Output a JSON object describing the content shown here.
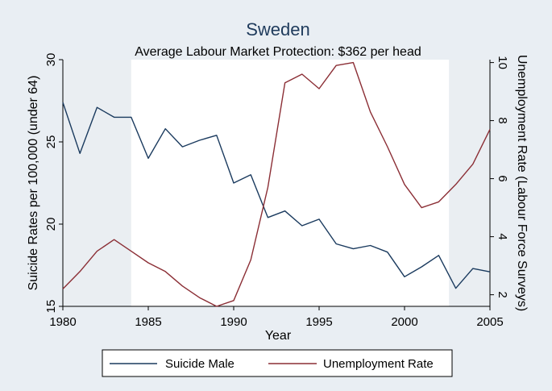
{
  "chart_data": {
    "type": "line",
    "title": "Sweden",
    "subtitle": "Average Labour Market Protection: $362 per head",
    "xlabel": "Year",
    "ylabel_left": "Suicide Rates per 100,000 (under 64)",
    "ylabel_right": "Unemployment Rate (Labour Force Surveys)",
    "xlim": [
      1980,
      2005
    ],
    "ylim_left": [
      15,
      30
    ],
    "ylim_right": [
      1.6,
      10.1
    ],
    "x_ticks": [
      1980,
      1985,
      1990,
      1995,
      2000,
      2005
    ],
    "y_left_ticks": [
      15,
      20,
      25,
      30
    ],
    "y_right_ticks": [
      2,
      4,
      6,
      8,
      10
    ],
    "shaded_ranges": [
      [
        1980,
        1984
      ],
      [
        2002.6,
        2005.5
      ]
    ],
    "legend_position": "bottom",
    "colors": {
      "suicide": "#1a3a5e",
      "unemployment": "#8b2e35",
      "plot_bg": "#ffffff",
      "shade": "#eaeef2",
      "outer_bg": "#e9eef3",
      "title": "#1f3b5c"
    },
    "x": [
      1980,
      1981,
      1982,
      1983,
      1984,
      1985,
      1986,
      1987,
      1988,
      1989,
      1990,
      1991,
      1992,
      1993,
      1994,
      1995,
      1996,
      1997,
      1998,
      1999,
      2000,
      2001,
      2002,
      2003,
      2004,
      2005
    ],
    "series": [
      {
        "name": "Suicide Male",
        "axis": "left",
        "values": [
          27.4,
          24.3,
          27.1,
          26.5,
          26.5,
          24.0,
          25.8,
          24.7,
          25.1,
          25.4,
          22.5,
          23.0,
          20.4,
          20.8,
          19.9,
          20.3,
          18.8,
          18.5,
          18.7,
          18.3,
          16.8,
          17.4,
          18.1,
          16.1,
          17.3,
          17.1
        ]
      },
      {
        "name": "Unemployment Rate",
        "axis": "right",
        "values": [
          2.2,
          2.8,
          3.5,
          3.9,
          3.5,
          3.1,
          2.8,
          2.3,
          1.9,
          1.6,
          1.8,
          3.2,
          5.7,
          9.3,
          9.6,
          9.1,
          9.9,
          10.0,
          8.3,
          7.1,
          5.8,
          5.0,
          5.2,
          5.8,
          6.5,
          7.7
        ]
      }
    ]
  }
}
